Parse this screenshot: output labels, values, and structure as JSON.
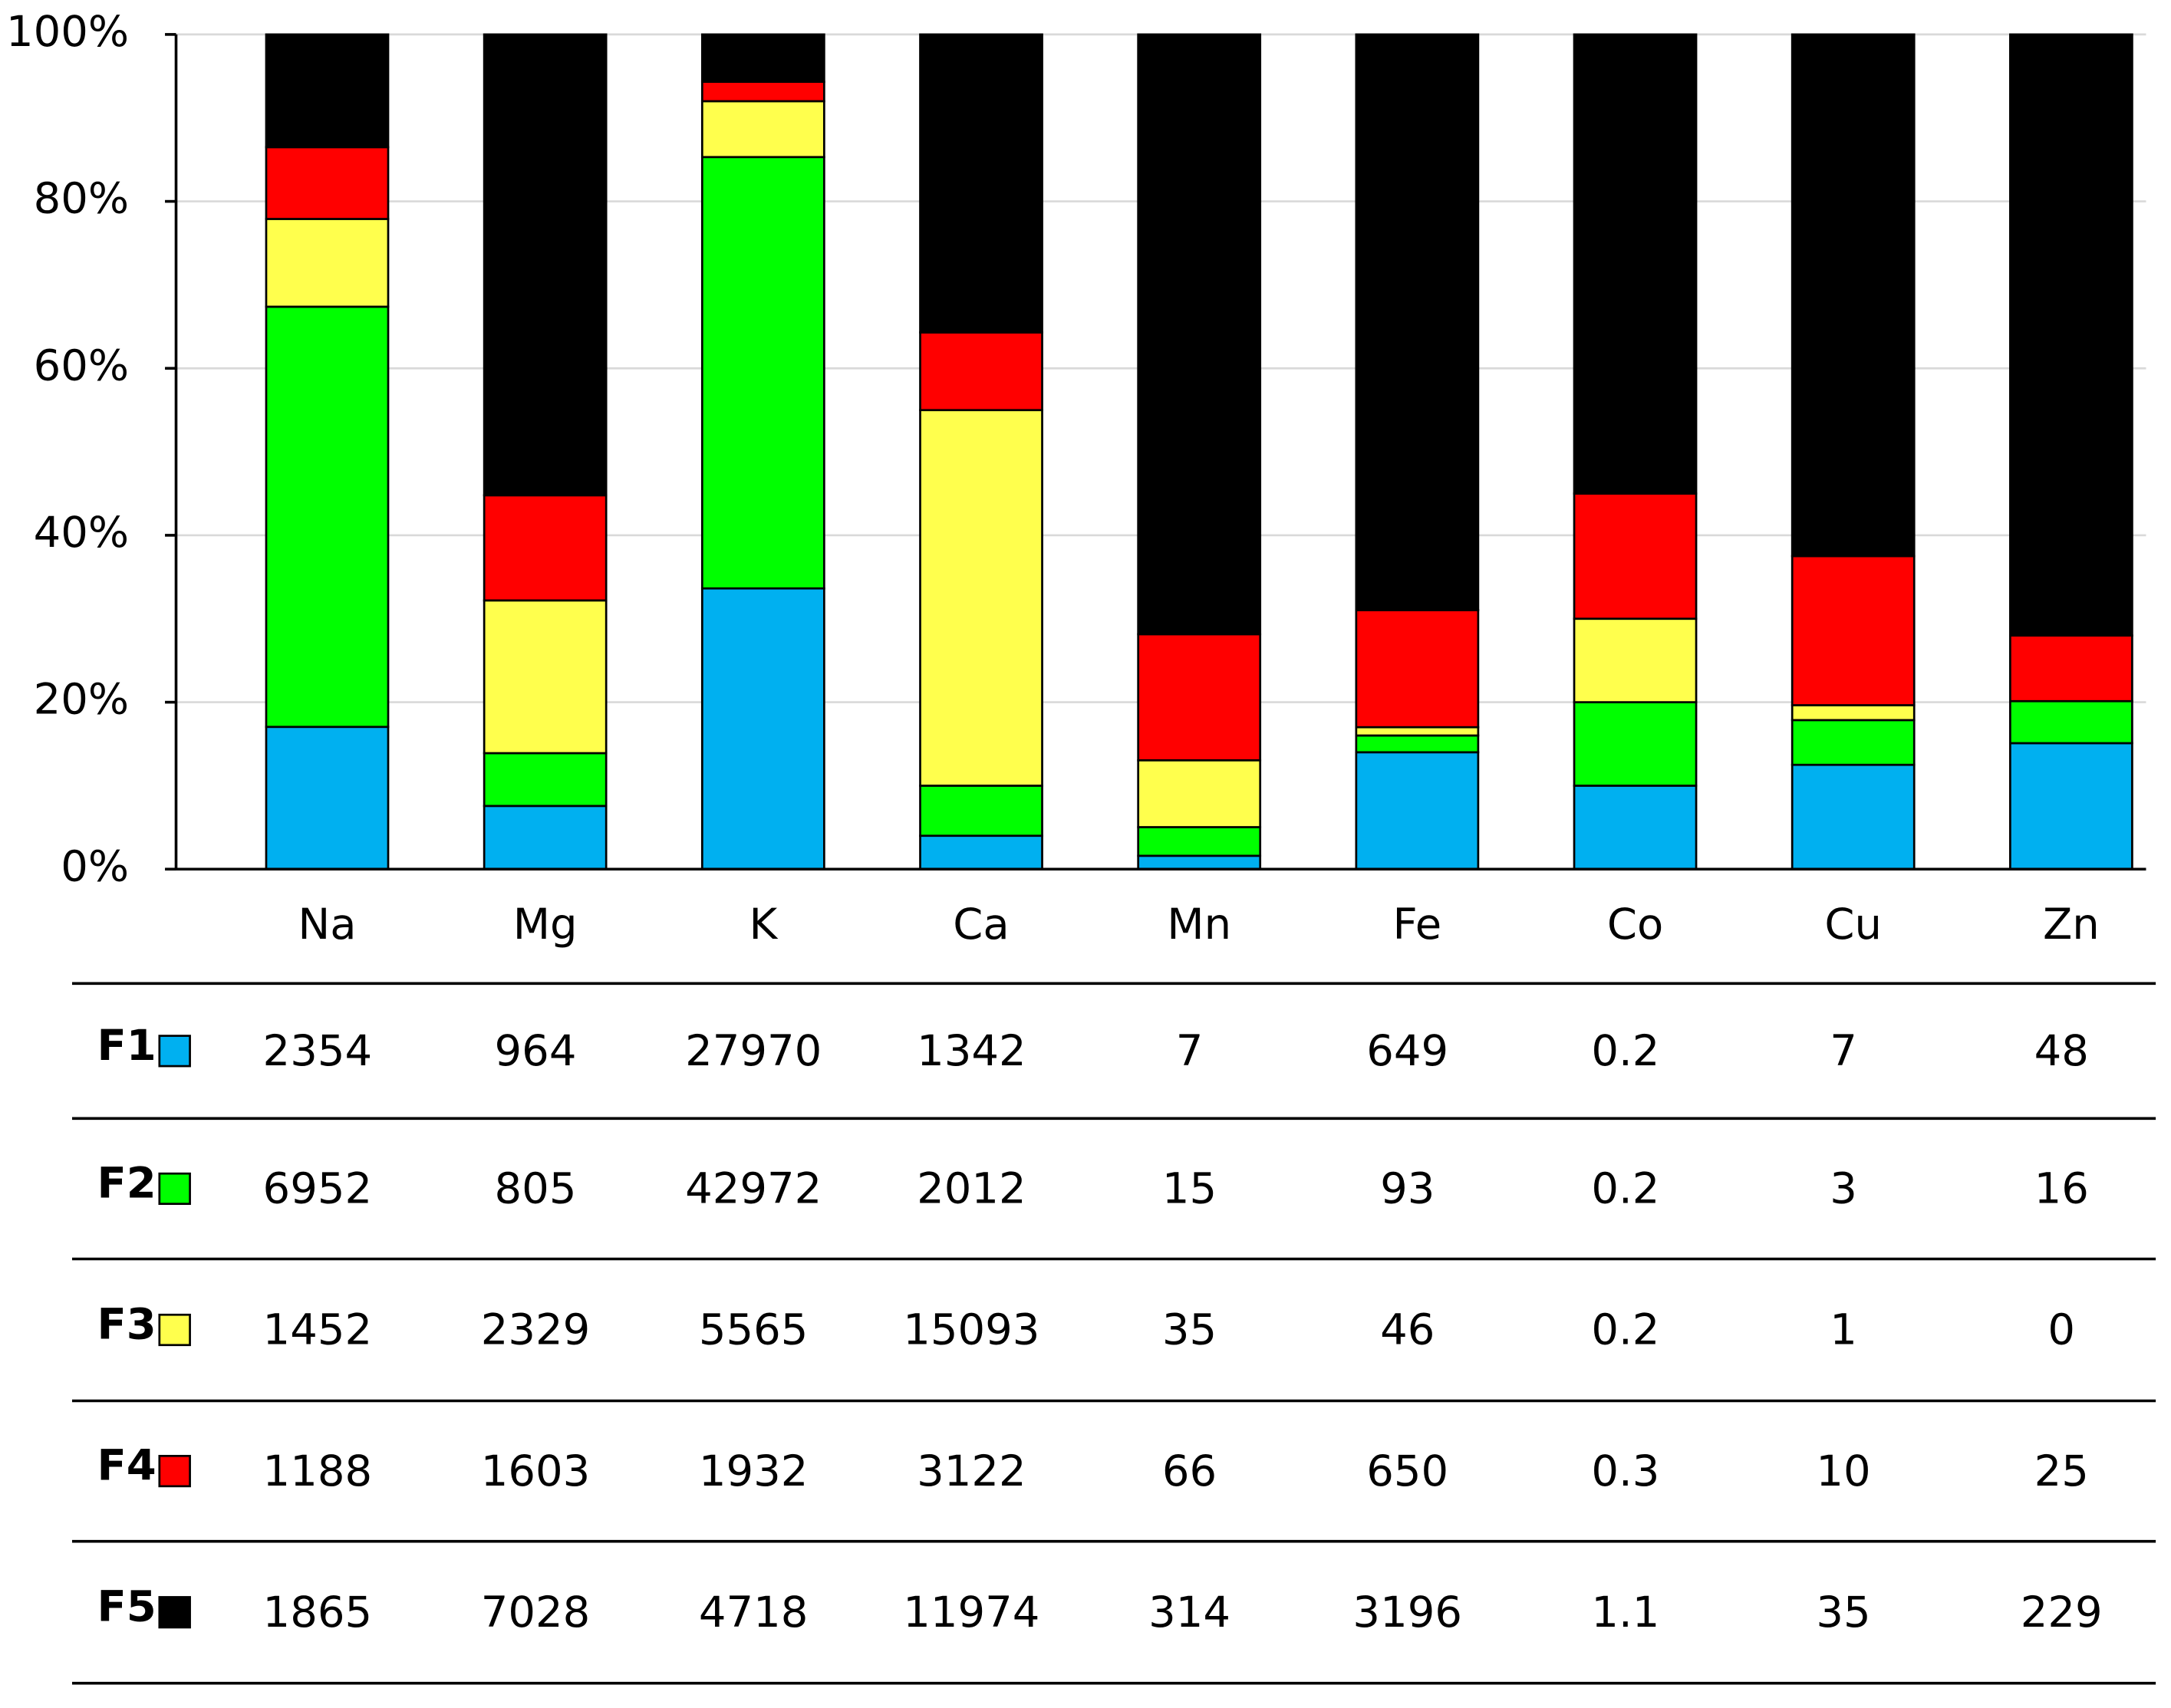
{
  "chart_data": {
    "type": "stacked_percent_bar",
    "categories": [
      "Na",
      "Mg",
      "K",
      "Ca",
      "Mn",
      "Fe",
      "Co",
      "Cu",
      "Zn"
    ],
    "series": [
      {
        "name": "F1",
        "color": "#00b0f0",
        "values": [
          2354,
          964,
          27970,
          1342,
          7,
          649,
          0.2,
          7,
          48
        ]
      },
      {
        "name": "F2",
        "color": "#00ff00",
        "values": [
          6952,
          805,
          42972,
          2012,
          15,
          93,
          0.2,
          3,
          16
        ]
      },
      {
        "name": "F3",
        "color": "#ffff4d",
        "values": [
          1452,
          2329,
          5565,
          15093,
          35,
          46,
          0.2,
          1,
          0
        ]
      },
      {
        "name": "F4",
        "color": "#ff0000",
        "values": [
          1188,
          1603,
          1932,
          3122,
          66,
          650,
          0.3,
          10,
          25
        ]
      },
      {
        "name": "F5",
        "color": "#000000",
        "values": [
          1865,
          7028,
          4718,
          11974,
          314,
          3196,
          1.1,
          35,
          229
        ]
      }
    ],
    "ylim": [
      0,
      100
    ],
    "yticks": [
      {
        "value": 0,
        "label": "0%"
      },
      {
        "value": 20,
        "label": "20%"
      },
      {
        "value": 40,
        "label": "40%"
      },
      {
        "value": 60,
        "label": "60%"
      },
      {
        "value": 80,
        "label": "80%"
      },
      {
        "value": 100,
        "label": "100%"
      }
    ],
    "grid": true
  }
}
